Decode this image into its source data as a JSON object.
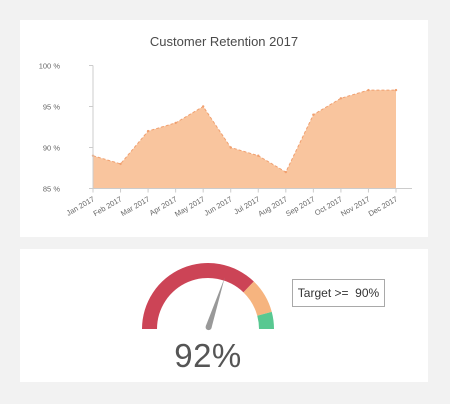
{
  "chart_data": [
    {
      "type": "area",
      "title": "Customer Retention 2017",
      "categories": [
        "Jan 2017",
        "Feb 2017",
        "Mar 2017",
        "Apr 2017",
        "May 2017",
        "Jun 2017",
        "Jul 2017",
        "Aug 2017",
        "Sep 2017",
        "Oct 2017",
        "Nov 2017",
        "Dec 2017"
      ],
      "values": [
        89,
        88,
        92,
        93,
        95,
        90,
        89,
        87,
        94,
        96,
        97,
        97
      ],
      "y_ticks": [
        "85 %",
        "90 %",
        "95 %",
        "100 %"
      ],
      "ylim": [
        85,
        100
      ],
      "grid": false,
      "colors": {
        "fill": "#f9c59e",
        "stroke": "#f0a070",
        "axis": "#cccccc"
      }
    },
    {
      "type": "gauge",
      "value": 92,
      "value_label": "92%",
      "target_label": "Target >=  90%",
      "colors": {
        "low": "#cc4456",
        "mid": "#f6b47f",
        "high": "#58c891",
        "needle": "#999999"
      }
    }
  ]
}
